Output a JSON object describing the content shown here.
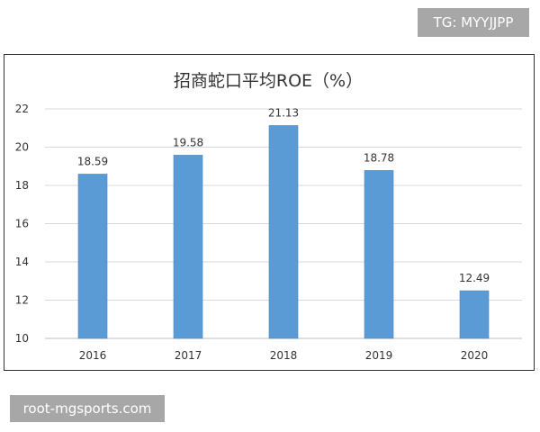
{
  "watermarks": {
    "top_right": "TG: MYYJJPP",
    "bottom_left": "root-mgsports.com"
  },
  "colors": {
    "bar": "#5b9bd5",
    "bar_edge": "#4a88c2",
    "grid": "#d9d9d9",
    "axis_text": "#333333",
    "watermark_bg": "#a7a7a7"
  },
  "chart_data": {
    "type": "bar",
    "title": "招商蛇口平均ROE（%）",
    "categories": [
      "2016",
      "2017",
      "2018",
      "2019",
      "2020"
    ],
    "values": [
      18.59,
      19.58,
      21.13,
      18.78,
      12.49
    ],
    "data_labels": [
      "18.59",
      "19.58",
      "21.13",
      "18.78",
      "12.49"
    ],
    "y_ticks": [
      "10",
      "12",
      "14",
      "16",
      "18",
      "20",
      "22"
    ],
    "ylim": [
      10,
      22
    ],
    "xlabel": "",
    "ylabel": "",
    "grid": true,
    "legend": "none"
  }
}
